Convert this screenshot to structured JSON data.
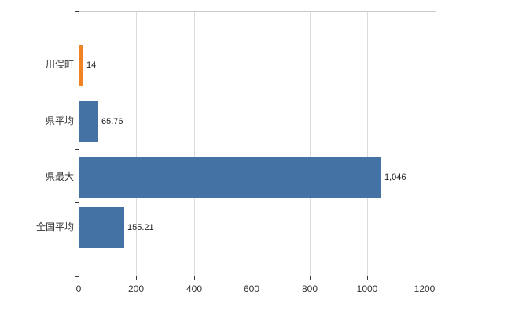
{
  "chart_data": {
    "type": "bar",
    "orientation": "horizontal",
    "title": "",
    "categories": [
      "川俣町",
      "県平均",
      "県最大",
      "全国平均"
    ],
    "values": [
      14,
      65.76,
      1046,
      155.21
    ],
    "value_labels": [
      "14",
      "65.76",
      "1,046",
      "155.21"
    ],
    "colors": [
      "#f08422",
      "#4472a4",
      "#4472a4",
      "#4472a4"
    ],
    "xlim": [
      0,
      1240
    ],
    "xticks": [
      0,
      200,
      400,
      600,
      800,
      1000,
      1200
    ],
    "grid": true,
    "legend_position": "none",
    "axis_color": "#3a3a3a",
    "grid_color": "#dcdcdc",
    "plot_border_color": "#c9c9c9",
    "background_color": "#ffffff"
  }
}
